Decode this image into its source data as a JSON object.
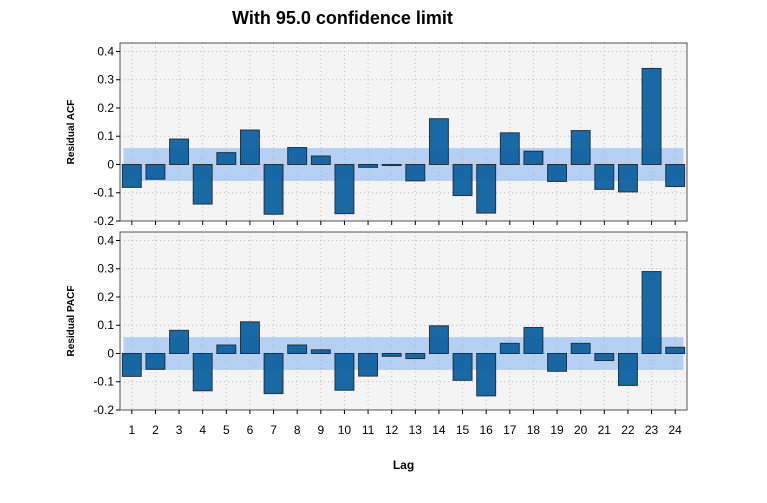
{
  "title": "With 95.0 confidence limit",
  "colors": {
    "bar_fill": "#0e62a0",
    "bar_stroke": "#1a2a3a",
    "band": "#8ab8f0",
    "plot_bg": "#f4f4f4",
    "grid": "#bdbdbd"
  },
  "chart_data": [
    {
      "type": "bar",
      "ylabel": "Residual ACF",
      "xlabel": "",
      "ylim": [
        -0.2,
        0.43
      ],
      "yticks": [
        -0.2,
        -0.1,
        0,
        0.1,
        0.2,
        0.3,
        0.4
      ],
      "confidence_band": [
        -0.058,
        0.058
      ],
      "categories": [
        "1",
        "2",
        "3",
        "4",
        "5",
        "6",
        "7",
        "8",
        "9",
        "10",
        "11",
        "12",
        "13",
        "14",
        "15",
        "16",
        "17",
        "18",
        "19",
        "20",
        "21",
        "22",
        "23",
        "24"
      ],
      "values": [
        -0.081,
        -0.052,
        0.09,
        -0.14,
        0.042,
        0.122,
        -0.176,
        0.06,
        0.03,
        -0.174,
        -0.01,
        -0.003,
        -0.058,
        0.162,
        -0.11,
        -0.172,
        0.112,
        0.047,
        -0.06,
        0.12,
        -0.088,
        -0.097,
        0.34,
        -0.078
      ],
      "grid": true
    },
    {
      "type": "bar",
      "ylabel": "Residual PACF",
      "xlabel": "Lag",
      "ylim": [
        -0.2,
        0.43
      ],
      "yticks": [
        -0.2,
        -0.1,
        0,
        0.1,
        0.2,
        0.3,
        0.4
      ],
      "confidence_band": [
        -0.058,
        0.058
      ],
      "categories": [
        "1",
        "2",
        "3",
        "4",
        "5",
        "6",
        "7",
        "8",
        "9",
        "10",
        "11",
        "12",
        "13",
        "14",
        "15",
        "16",
        "17",
        "18",
        "19",
        "20",
        "21",
        "22",
        "23",
        "24"
      ],
      "values": [
        -0.081,
        -0.056,
        0.082,
        -0.132,
        0.03,
        0.112,
        -0.142,
        0.03,
        0.013,
        -0.13,
        -0.08,
        -0.01,
        -0.018,
        0.098,
        -0.095,
        -0.15,
        0.036,
        0.092,
        -0.063,
        0.036,
        -0.025,
        -0.113,
        0.29,
        0.022
      ],
      "grid": true
    }
  ]
}
